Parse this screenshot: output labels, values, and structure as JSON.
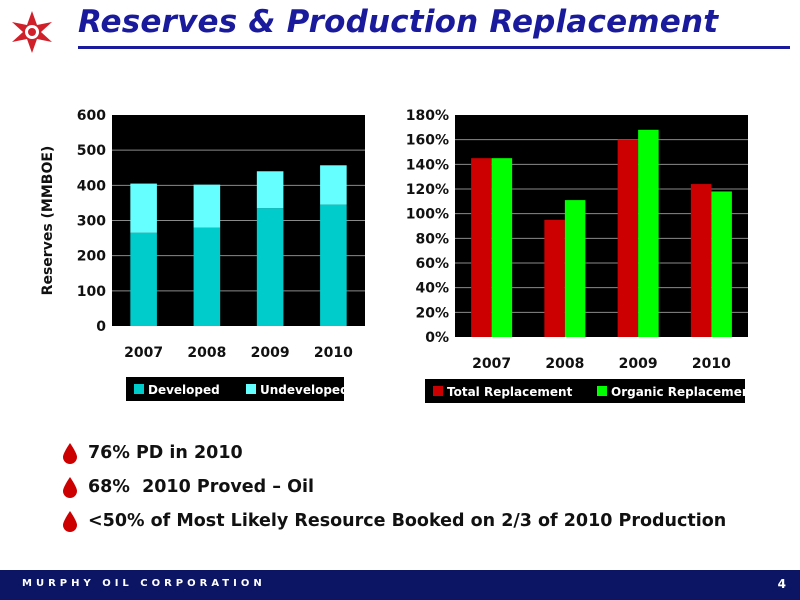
{
  "title": "Reserves & Production Replacement",
  "colors": {
    "title": "#1a1a9c",
    "footer_bg": "#0c1563",
    "logo": "#d0202a",
    "developed": "#00cccc",
    "undeveloped": "#66ffff",
    "total_replacement": "#cc0000",
    "organic_replacement": "#00ff00",
    "plot_bg": "#000000"
  },
  "chart_data": [
    {
      "type": "bar",
      "stacked": true,
      "categories": [
        "2007",
        "2008",
        "2009",
        "2010"
      ],
      "series": [
        {
          "name": "Developed",
          "values": [
            265,
            280,
            335,
            345
          ],
          "color": "#00cccc"
        },
        {
          "name": "Undeveloped",
          "values": [
            140,
            122,
            105,
            112
          ],
          "color": "#66ffff"
        }
      ],
      "ylabel": "Reserves (MMBOE)",
      "ylim": [
        0,
        600
      ],
      "yticks": [
        "0",
        "100",
        "200",
        "300",
        "400",
        "500",
        "600"
      ],
      "grid": true,
      "legend": "bottom"
    },
    {
      "type": "bar",
      "categories": [
        "2007",
        "2008",
        "2009",
        "2010"
      ],
      "series": [
        {
          "name": "Total Replacement",
          "values": [
            145,
            95,
            160,
            124
          ],
          "color": "#cc0000"
        },
        {
          "name": "Organic Replacement",
          "values": [
            145,
            111,
            168,
            118
          ],
          "color": "#00ff00"
        }
      ],
      "ylim": [
        0,
        180
      ],
      "yticks": [
        "0%",
        "20%",
        "40%",
        "60%",
        "80%",
        "100%",
        "120%",
        "140%",
        "160%",
        "180%"
      ],
      "grid": true,
      "legend": "bottom"
    }
  ],
  "bullets": [
    "76% PD in 2010",
    "68%  2010 Proved – Oil",
    "<50% of Most Likely Resource Booked on 2/3 of 2010 Production"
  ],
  "footer": {
    "company": "MURPHY OIL CORPORATION",
    "page": "4"
  }
}
